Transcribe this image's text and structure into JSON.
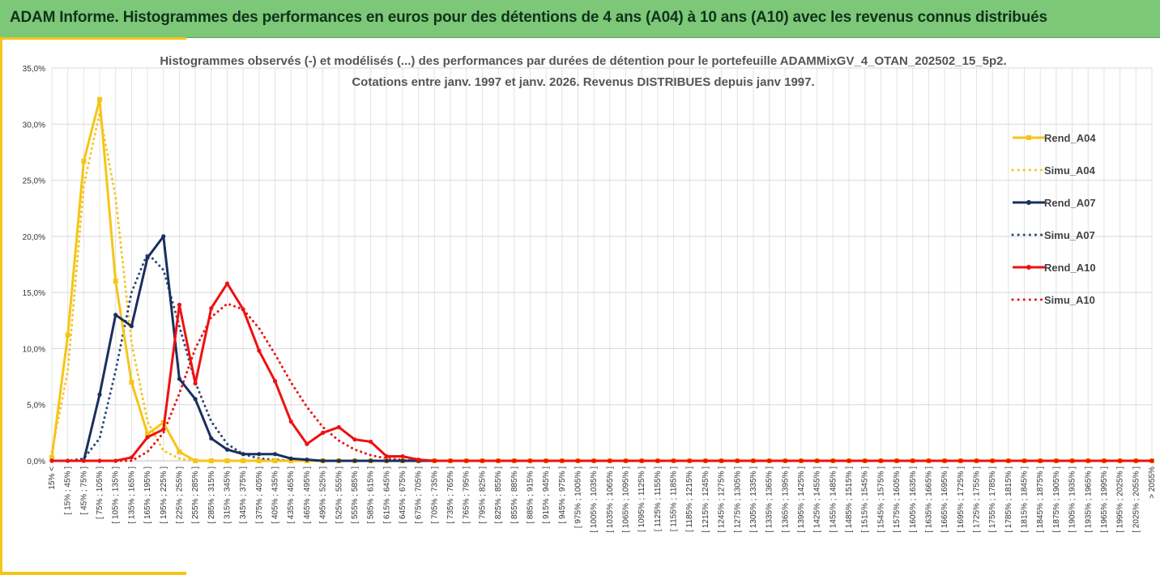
{
  "banner": {
    "title": "ADAM Informe. Histogrammes des performances en euros pour des détentions de 4 ans (A04) à 10 ans (A10) avec les revenus connus distribués"
  },
  "chart_data": {
    "type": "line",
    "title_line1": "Histogrammes observés (-) et modélisés (...) des performances par durées de détention pour  le portefeuille ADAMMixGV_4_OTAN_202502_15_5p2.",
    "title_line2": "Cotations  entre janv. 1997 et janv. 2026. Revenus DISTRIBUES depuis janv 1997.",
    "ylim": [
      0,
      35
    ],
    "yticks": [
      "0,0%",
      "5,0%",
      "10,0%",
      "15,0%",
      "20,0%",
      "25,0%",
      "30,0%",
      "35,0%"
    ],
    "grid": true,
    "legend_position": "right",
    "categories": [
      "15% <",
      "[ 15% ; 45% ]",
      "[ 45% ; 75% ]",
      "[ 75% ; 105% ]",
      "[ 105% ; 135% ]",
      "[ 135% ; 165% ]",
      "[ 165% ; 195% ]",
      "[ 195% ; 225% ]",
      "[ 225% ; 255% ]",
      "[ 255% ; 285% ]",
      "[ 285% ; 315% ]",
      "[ 315% ; 345% ]",
      "[ 345% ; 375% ]",
      "[ 375% ; 405% ]",
      "[ 405% ; 435% ]",
      "[ 435% ; 465% ]",
      "[ 465% ; 495% ]",
      "[ 495% ; 525% ]",
      "[ 525% ; 555% ]",
      "[ 555% ; 585% ]",
      "[ 585% ; 615% ]",
      "[ 615% ; 645% ]",
      "[ 645% ; 675% ]",
      "[ 675% ; 705% ]",
      "[ 705% ; 735% ]",
      "[ 735% ; 765% ]",
      "[ 765% ; 795% ]",
      "[ 795% ; 825% ]",
      "[ 825% ; 855% ]",
      "[ 855% ; 885% ]",
      "[ 885% ; 915% ]",
      "[ 915% ; 945% ]",
      "[ 945% ; 975% ]",
      "[ 975% ; 1005% ]",
      "[ 1005% ; 1035% ]",
      "[ 1035% ; 1065% ]",
      "[ 1065% ; 1095% ]",
      "[ 1095% ; 1125% ]",
      "[ 1125% ; 1155% ]",
      "[ 1155% ; 1185% ]",
      "[ 1185% ; 1215% ]",
      "[ 1215% ; 1245% ]",
      "[ 1245% ; 1275% ]",
      "[ 1275% ; 1305% ]",
      "[ 1305% ; 1335% ]",
      "[ 1335% ; 1365% ]",
      "[ 1365% ; 1395% ]",
      "[ 1395% ; 1425% ]",
      "[ 1425% ; 1455% ]",
      "[ 1455% ; 1485% ]",
      "[ 1485% ; 1515% ]",
      "[ 1515% ; 1545% ]",
      "[ 1545% ; 1575% ]",
      "[ 1575% ; 1605% ]",
      "[ 1605% ; 1635% ]",
      "[ 1635% ; 1665% ]",
      "[ 1665% ; 1695% ]",
      "[ 1695% ; 1725% ]",
      "[ 1725% ; 1755% ]",
      "[ 1755% ; 1785% ]",
      "[ 1785% ; 1815% ]",
      "[ 1815% ; 1845% ]",
      "[ 1845% ; 1875% ]",
      "[ 1875% ; 1905% ]",
      "[ 1905% ; 1935% ]",
      "[ 1935% ; 1965% ]",
      "[ 1965% ; 1995% ]",
      "[ 1995% ; 2025% ]",
      "[ 2025% ; 2055% ]",
      "> 2055%"
    ],
    "series": [
      {
        "name": "Rend_A04",
        "color": "#f5c518",
        "style": "solid",
        "marker": "square",
        "values": [
          0.3,
          11.2,
          26.7,
          32.2,
          16.0,
          7.0,
          2.4,
          3.4,
          0.8,
          0,
          0,
          0,
          0,
          0,
          0,
          0,
          0,
          0,
          0,
          0,
          0,
          0,
          0,
          0,
          0,
          0,
          0,
          0,
          0,
          0,
          0,
          0,
          0,
          0,
          0,
          0,
          0,
          0,
          0,
          0,
          0,
          0,
          0,
          0,
          0,
          0,
          0,
          0,
          0,
          0,
          0,
          0,
          0,
          0,
          0,
          0,
          0,
          0,
          0,
          0,
          0,
          0,
          0,
          0,
          0,
          0,
          0,
          0,
          0,
          0
        ]
      },
      {
        "name": "Simu_A04",
        "color": "#f5c518",
        "style": "dotted",
        "marker": "none",
        "values": [
          0.8,
          8.0,
          24.5,
          31.0,
          23.5,
          10.5,
          3.5,
          0.9,
          0.2,
          0,
          0,
          0,
          0,
          0,
          0,
          0,
          0,
          0,
          0,
          0,
          0,
          0,
          0,
          0,
          0,
          0,
          0,
          0,
          0,
          0,
          0,
          0,
          0,
          0,
          0,
          0,
          0,
          0,
          0,
          0,
          0,
          0,
          0,
          0,
          0,
          0,
          0,
          0,
          0,
          0,
          0,
          0,
          0,
          0,
          0,
          0,
          0,
          0,
          0,
          0,
          0,
          0,
          0,
          0,
          0,
          0,
          0,
          0,
          0,
          0
        ]
      },
      {
        "name": "Rend_A07",
        "color": "#1a2f5e",
        "style": "solid",
        "marker": "circle",
        "values": [
          0,
          0,
          0,
          5.9,
          13.0,
          12.0,
          18.1,
          20.0,
          7.3,
          5.5,
          2.0,
          1.0,
          0.6,
          0.6,
          0.6,
          0.2,
          0.1,
          0,
          0,
          0,
          0,
          0,
          0,
          0,
          0,
          0,
          0,
          0,
          0,
          0,
          0,
          0,
          0,
          0,
          0,
          0,
          0,
          0,
          0,
          0,
          0,
          0,
          0,
          0,
          0,
          0,
          0,
          0,
          0,
          0,
          0,
          0,
          0,
          0,
          0,
          0,
          0,
          0,
          0,
          0,
          0,
          0,
          0,
          0,
          0,
          0,
          0,
          0,
          0,
          0
        ]
      },
      {
        "name": "Simu_A07",
        "color": "#2b4a7a",
        "style": "dotted",
        "marker": "none",
        "values": [
          0,
          0,
          0.2,
          2.0,
          8.0,
          15.0,
          18.5,
          17.0,
          12.0,
          7.0,
          3.5,
          1.5,
          0.6,
          0.2,
          0.1,
          0,
          0,
          0,
          0,
          0,
          0,
          0,
          0,
          0,
          0,
          0,
          0,
          0,
          0,
          0,
          0,
          0,
          0,
          0,
          0,
          0,
          0,
          0,
          0,
          0,
          0,
          0,
          0,
          0,
          0,
          0,
          0,
          0,
          0,
          0,
          0,
          0,
          0,
          0,
          0,
          0,
          0,
          0,
          0,
          0,
          0,
          0,
          0,
          0,
          0,
          0,
          0,
          0,
          0,
          0
        ]
      },
      {
        "name": "Rend_A10",
        "color": "#ee1111",
        "style": "solid",
        "marker": "circle",
        "values": [
          0,
          0,
          0,
          0,
          0,
          0.3,
          2.1,
          2.8,
          13.9,
          6.9,
          13.6,
          15.8,
          13.5,
          9.8,
          7.1,
          3.5,
          1.5,
          2.5,
          3.0,
          1.9,
          1.7,
          0.4,
          0.4,
          0.1,
          0,
          0,
          0,
          0,
          0,
          0,
          0,
          0,
          0,
          0,
          0,
          0,
          0,
          0,
          0,
          0,
          0,
          0,
          0,
          0,
          0,
          0,
          0,
          0,
          0,
          0,
          0,
          0,
          0,
          0,
          0,
          0,
          0,
          0,
          0,
          0,
          0,
          0,
          0,
          0,
          0,
          0,
          0,
          0,
          0,
          0
        ]
      },
      {
        "name": "Simu_A10",
        "color": "#ee1111",
        "style": "dotted",
        "marker": "none",
        "values": [
          0,
          0,
          0,
          0,
          0,
          0,
          0.8,
          2.5,
          6.0,
          10.0,
          12.8,
          14.0,
          13.5,
          11.8,
          9.5,
          7.0,
          4.8,
          3.0,
          1.8,
          1.0,
          0.5,
          0.2,
          0.1,
          0,
          0,
          0,
          0,
          0,
          0,
          0,
          0,
          0,
          0,
          0,
          0,
          0,
          0,
          0,
          0,
          0,
          0,
          0,
          0,
          0,
          0,
          0,
          0,
          0,
          0,
          0,
          0,
          0,
          0,
          0,
          0,
          0,
          0,
          0,
          0,
          0,
          0,
          0,
          0,
          0,
          0,
          0,
          0,
          0,
          0,
          0
        ]
      }
    ]
  }
}
